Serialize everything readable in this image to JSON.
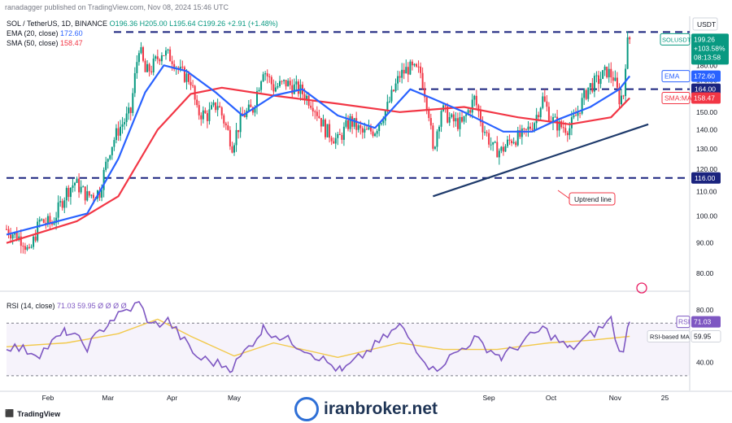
{
  "top_text": "ranadagger published on TradingView.com, Nov 08, 2024 15:46 UTC",
  "header": {
    "symbol": "SOL / TetherUS, 1D, BINANCE",
    "ohlc": "O196.36 H205.00 L195.64 C199.26 +2.91 (+1.48%)",
    "ema_label": "EMA (20, close)",
    "ema_value": "172.60",
    "sma_label": "SMA (50, close)",
    "sma_value": "158.47",
    "rsi_label": "RSI (14, close)",
    "rsi_values": "71.03  59.95  Ø  Ø  Ø  Ø"
  },
  "currency": "USDT",
  "brand": "TradingView",
  "watermark": "iranbroker.net",
  "colors": {
    "up": "#089981",
    "down": "#f23645",
    "ema": "#2962ff",
    "sma": "#f23645",
    "rsi": "#7e57c2",
    "rsi_ma": "#f2c94c",
    "level": "#1a237e",
    "trendline": "#1e3a6b"
  },
  "chart_data": [
    {
      "type": "candlestick",
      "title": "SOL / TetherUS, 1D, BINANCE",
      "y_scale": "log",
      "y_ticks": [
        80,
        90,
        100,
        110,
        120,
        130,
        140,
        150,
        160,
        170,
        180,
        190
      ],
      "x_ticks": [
        "Feb",
        "Mar",
        "Apr",
        "May",
        "Sep",
        "Oct",
        "Nov",
        "25"
      ],
      "close_path": [
        [
          "2024-01-12",
          95
        ],
        [
          "2024-01-20",
          91
        ],
        [
          "2024-01-23",
          86
        ],
        [
          "2024-01-28",
          98
        ],
        [
          "2024-02-03",
          97
        ],
        [
          "2024-02-10",
          110
        ],
        [
          "2024-02-14",
          114
        ],
        [
          "2024-02-20",
          108
        ],
        [
          "2024-02-26",
          110
        ],
        [
          "2024-03-02",
          130
        ],
        [
          "2024-03-06",
          140
        ],
        [
          "2024-03-12",
          150
        ],
        [
          "2024-03-16",
          194
        ],
        [
          "2024-03-19",
          175
        ],
        [
          "2024-03-22",
          178
        ],
        [
          "2024-03-27",
          190
        ],
        [
          "2024-04-01",
          185
        ],
        [
          "2024-04-05",
          175
        ],
        [
          "2024-04-10",
          170
        ],
        [
          "2024-04-13",
          150
        ],
        [
          "2024-04-18",
          148
        ],
        [
          "2024-04-23",
          155
        ],
        [
          "2024-04-30",
          132
        ],
        [
          "2024-05-05",
          148
        ],
        [
          "2024-05-10",
          152
        ],
        [
          "2024-05-15",
          178
        ],
        [
          "2024-05-20",
          165
        ],
        [
          "2024-05-26",
          168
        ],
        [
          "2024-06-02",
          163
        ],
        [
          "2024-06-08",
          155
        ],
        [
          "2024-06-14",
          140
        ],
        [
          "2024-06-20",
          134
        ],
        [
          "2024-06-26",
          145
        ],
        [
          "2024-07-02",
          138
        ],
        [
          "2024-07-08",
          140
        ],
        [
          "2024-07-14",
          153
        ],
        [
          "2024-07-20",
          173
        ],
        [
          "2024-07-24",
          178
        ],
        [
          "2024-07-30",
          175
        ],
        [
          "2024-08-03",
          150
        ],
        [
          "2024-08-05",
          128
        ],
        [
          "2024-08-09",
          152
        ],
        [
          "2024-08-14",
          145
        ],
        [
          "2024-08-19",
          143
        ],
        [
          "2024-08-25",
          158
        ],
        [
          "2024-08-29",
          142
        ],
        [
          "2024-09-03",
          130
        ],
        [
          "2024-09-07",
          129
        ],
        [
          "2024-09-12",
          135
        ],
        [
          "2024-09-18",
          137
        ],
        [
          "2024-09-23",
          145
        ],
        [
          "2024-09-27",
          158
        ],
        [
          "2024-10-01",
          146
        ],
        [
          "2024-10-05",
          142
        ],
        [
          "2024-10-10",
          141
        ],
        [
          "2024-10-14",
          150
        ],
        [
          "2024-10-19",
          165
        ],
        [
          "2024-10-24",
          170
        ],
        [
          "2024-10-28",
          176
        ],
        [
          "2024-10-31",
          172
        ],
        [
          "2024-11-03",
          158
        ],
        [
          "2024-11-05",
          161
        ],
        [
          "2024-11-06",
          183
        ],
        [
          "2024-11-07",
          196
        ],
        [
          "2024-11-08",
          199.26
        ]
      ],
      "last_price": {
        "value": 199.26,
        "label": "SOLUSDT",
        "change": "+103.58%",
        "countdown": "08:13:58"
      },
      "horizontal_levels": [
        {
          "value": 205,
          "label": ""
        },
        {
          "value": 164.0,
          "label": "164.00"
        },
        {
          "value": 116.0,
          "label": "116.00"
        }
      ],
      "series": [
        {
          "name": "EMA",
          "value_label": "172.60",
          "points": [
            [
              "2024-01-12",
              93
            ],
            [
              "2024-02-20",
              101
            ],
            [
              "2024-03-06",
              125
            ],
            [
              "2024-03-19",
              162
            ],
            [
              "2024-03-28",
              180
            ],
            [
              "2024-04-08",
              176
            ],
            [
              "2024-04-22",
              162
            ],
            [
              "2024-05-05",
              148
            ],
            [
              "2024-05-20",
              160
            ],
            [
              "2024-06-03",
              164
            ],
            [
              "2024-06-20",
              148
            ],
            [
              "2024-07-08",
              141
            ],
            [
              "2024-07-25",
              164
            ],
            [
              "2024-08-05",
              158
            ],
            [
              "2024-08-20",
              150
            ],
            [
              "2024-09-08",
              139
            ],
            [
              "2024-09-22",
              139
            ],
            [
              "2024-10-05",
              146
            ],
            [
              "2024-10-20",
              153
            ],
            [
              "2024-11-03",
              164
            ],
            [
              "2024-11-08",
              172.6
            ]
          ]
        },
        {
          "name": "SMA",
          "value_label": "158.47",
          "points": [
            [
              "2024-01-12",
              90
            ],
            [
              "2024-02-15",
              98
            ],
            [
              "2024-03-06",
              108
            ],
            [
              "2024-03-25",
              140
            ],
            [
              "2024-04-10",
              161
            ],
            [
              "2024-04-25",
              165
            ],
            [
              "2024-05-20",
              160
            ],
            [
              "2024-06-20",
              155
            ],
            [
              "2024-07-20",
              150
            ],
            [
              "2024-08-20",
              153
            ],
            [
              "2024-09-15",
              147
            ],
            [
              "2024-10-10",
              143
            ],
            [
              "2024-10-30",
              147
            ],
            [
              "2024-11-08",
              158.47
            ]
          ]
        }
      ],
      "annotations": [
        {
          "type": "trendline",
          "text": "Uptrend line",
          "from": [
            "2024-08-05",
            108
          ],
          "to": [
            "2024-11-17",
            143
          ]
        }
      ]
    },
    {
      "type": "line",
      "title": "RSI (14, close)",
      "y_ticks": [
        40,
        80
      ],
      "ylim": [
        20,
        90
      ],
      "bands": [
        70,
        30
      ],
      "series": [
        {
          "name": "RSI",
          "value_label": "71.03",
          "points": [
            [
              "2024-01-12",
              53
            ],
            [
              "2024-01-28",
              47
            ],
            [
              "2024-02-10",
              64
            ],
            [
              "2024-02-20",
              52
            ],
            [
              "2024-03-02",
              72
            ],
            [
              "2024-03-16",
              85
            ],
            [
              "2024-03-22",
              68
            ],
            [
              "2024-03-30",
              72
            ],
            [
              "2024-04-13",
              44
            ],
            [
              "2024-04-30",
              36
            ],
            [
              "2024-05-15",
              66
            ],
            [
              "2024-06-05",
              50
            ],
            [
              "2024-06-22",
              33
            ],
            [
              "2024-07-20",
              68
            ],
            [
              "2024-08-05",
              34
            ],
            [
              "2024-08-25",
              58
            ],
            [
              "2024-09-07",
              44
            ],
            [
              "2024-09-27",
              66
            ],
            [
              "2024-10-10",
              50
            ],
            [
              "2024-10-24",
              65
            ],
            [
              "2024-10-30",
              73
            ],
            [
              "2024-11-03",
              47
            ],
            [
              "2024-11-05",
              52
            ],
            [
              "2024-11-08",
              71.03
            ]
          ]
        },
        {
          "name": "RSI-based MA",
          "value_label": "59.95",
          "points": [
            [
              "2024-01-12",
              52
            ],
            [
              "2024-02-10",
              55
            ],
            [
              "2024-03-06",
              62
            ],
            [
              "2024-03-25",
              73
            ],
            [
              "2024-04-10",
              60
            ],
            [
              "2024-05-01",
              45
            ],
            [
              "2024-05-20",
              55
            ],
            [
              "2024-06-20",
              44
            ],
            [
              "2024-07-20",
              55
            ],
            [
              "2024-08-10",
              50
            ],
            [
              "2024-09-05",
              50
            ],
            [
              "2024-09-30",
              55
            ],
            [
              "2024-10-20",
              57
            ],
            [
              "2024-11-08",
              59.95
            ]
          ]
        }
      ]
    }
  ]
}
